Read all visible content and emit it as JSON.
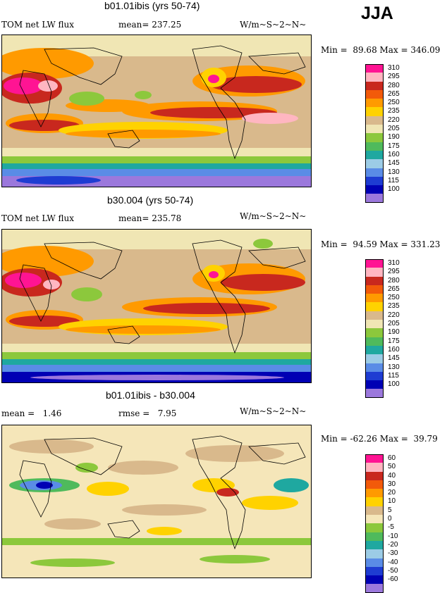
{
  "season": "JJA",
  "panels": [
    {
      "title": "b01.01ibis (yrs 50-74)",
      "left_text": "TOM net LW flux",
      "mean_text": "mean= 237.25",
      "units": "W/m~S~2~N~",
      "minmax": "Min =  89.68 Max = 346.09",
      "levels": [
        "310",
        "295",
        "280",
        "265",
        "250",
        "235",
        "220",
        "205",
        "190",
        "175",
        "160",
        "145",
        "130",
        "115",
        "100"
      ],
      "colors": [
        "#ff1493",
        "#ffb6c1",
        "#c8281e",
        "#f25a0a",
        "#ff9a00",
        "#ffd200",
        "#d9b98c",
        "#f0e6b4",
        "#8cc83c",
        "#4fba5c",
        "#1fa8a0",
        "#9ccce6",
        "#5a8ce6",
        "#1e3cd2",
        "#0000b4",
        "#9b78dc"
      ]
    },
    {
      "title": "b30.004 (yrs 50-74)",
      "left_text": "TOM net LW flux",
      "mean_text": "mean= 235.78",
      "units": "W/m~S~2~N~",
      "minmax": "Min =  94.59 Max = 331.23",
      "levels": [
        "310",
        "295",
        "280",
        "265",
        "250",
        "235",
        "220",
        "205",
        "190",
        "175",
        "160",
        "145",
        "130",
        "115",
        "100"
      ],
      "colors": [
        "#ff1493",
        "#ffb6c1",
        "#c8281e",
        "#f25a0a",
        "#ff9a00",
        "#ffd200",
        "#d9b98c",
        "#f0e6b4",
        "#8cc83c",
        "#4fba5c",
        "#1fa8a0",
        "#9ccce6",
        "#5a8ce6",
        "#1e3cd2",
        "#0000b4",
        "#9b78dc"
      ]
    },
    {
      "title": "b01.01ibis - b30.004",
      "left_text": "mean =   1.46",
      "mean_text": "rmse =   7.95",
      "units": "W/m~S~2~N~",
      "minmax": "Min = -62.26 Max =  39.79",
      "levels": [
        "60",
        "50",
        "40",
        "30",
        "20",
        "10",
        "5",
        "0",
        "-5",
        "-10",
        "-20",
        "-30",
        "-40",
        "-50",
        "-60"
      ],
      "colors": [
        "#ff1493",
        "#ffb6c1",
        "#c8281e",
        "#f25a0a",
        "#ff9a00",
        "#ffd200",
        "#d9b98c",
        "#f5e6b9",
        "#8cc83c",
        "#4fba5c",
        "#1fa8a0",
        "#9ccce6",
        "#5a8ce6",
        "#1e3cd2",
        "#0000b4",
        "#9b78dc"
      ]
    }
  ]
}
